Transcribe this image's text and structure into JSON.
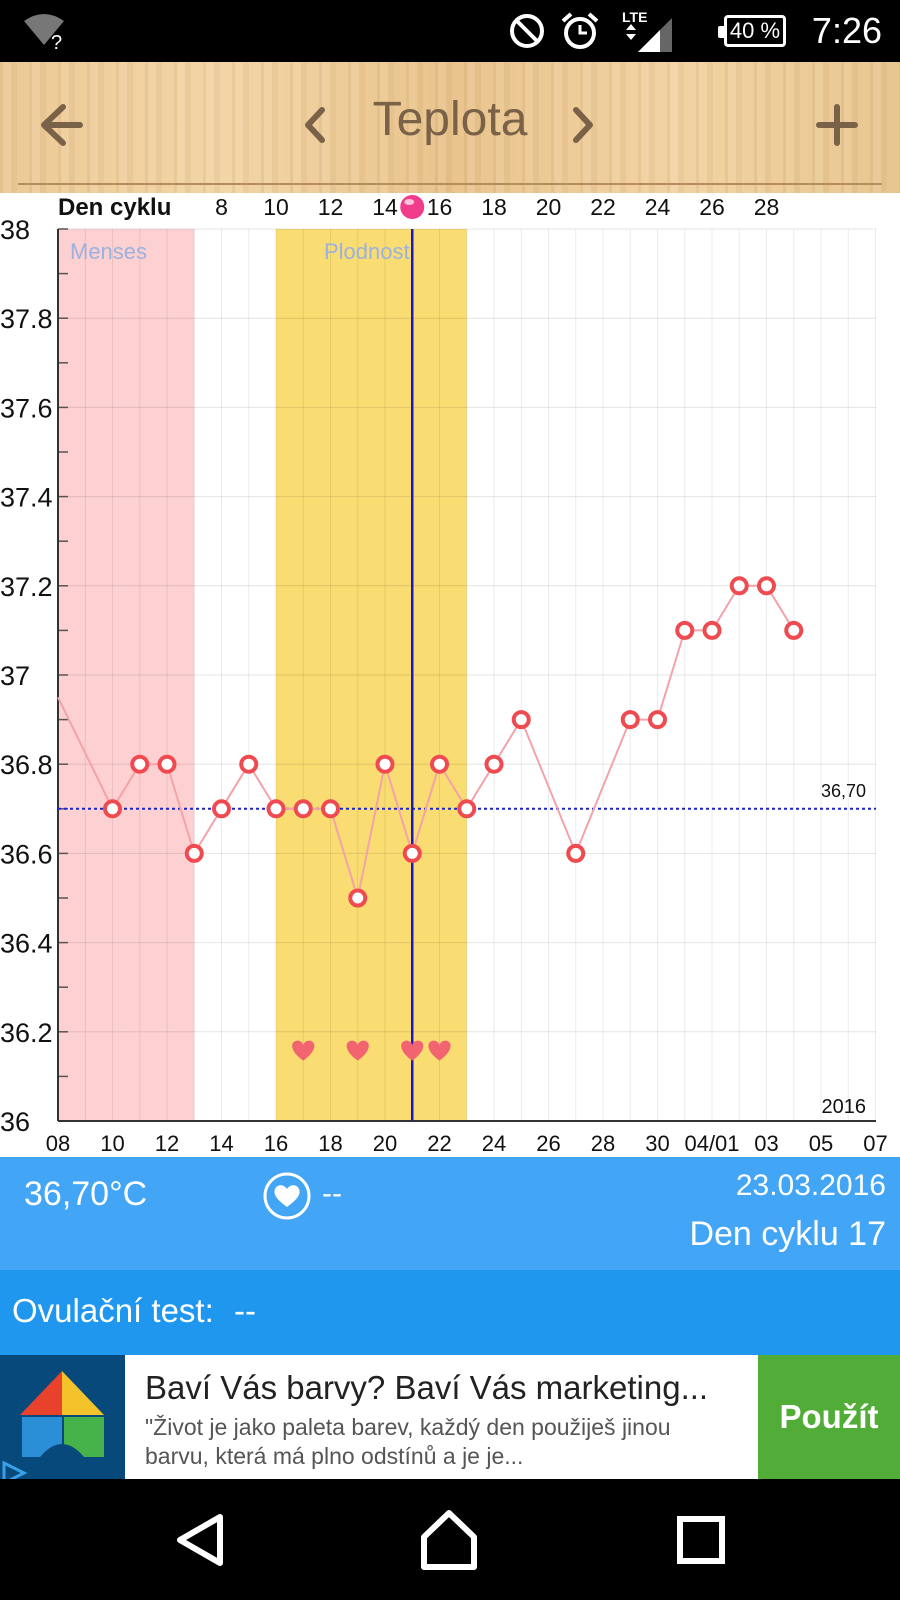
{
  "status_bar": {
    "time": "7:26",
    "battery": "40 %",
    "icons": [
      "wifi-unknown-icon",
      "do-not-disturb-icon",
      "alarm-icon",
      "lte-signal-icon",
      "battery-icon"
    ]
  },
  "app_bar": {
    "title": "Teplota",
    "back_icon": "arrow-left-icon",
    "prev_icon": "chevron-left-icon",
    "next_icon": "chevron-right-icon",
    "add_icon": "plus-icon"
  },
  "chart_data": {
    "type": "line",
    "cycle_day_label": "Den cyklu",
    "cycle_day_ticks": [
      "8",
      "10",
      "12",
      "14",
      "16",
      "18",
      "20",
      "22",
      "24",
      "26",
      "28"
    ],
    "ylim": [
      36,
      38
    ],
    "yticks": [
      "36",
      "36.2",
      "36.4",
      "36.6",
      "36.8",
      "37",
      "37.2",
      "37.4",
      "37.6",
      "37.8",
      "38"
    ],
    "xlim_day_index": [
      0,
      30
    ],
    "xtick_labels": [
      "08",
      "10",
      "12",
      "14",
      "16",
      "18",
      "20",
      "22",
      "24",
      "26",
      "28",
      "30",
      "04/01",
      "03",
      "05",
      "07"
    ],
    "year_label": "2016",
    "series": [
      {
        "color": "#f4a3a8",
        "marker_color": "#ef4a4f",
        "points": [
          {
            "x": 2,
            "y": 36.7
          },
          {
            "x": 3,
            "y": 36.8
          },
          {
            "x": 4,
            "y": 36.8
          },
          {
            "x": 5,
            "y": 36.6
          },
          {
            "x": 6,
            "y": 36.7
          },
          {
            "x": 7,
            "y": 36.8
          },
          {
            "x": 8,
            "y": 36.7
          },
          {
            "x": 9,
            "y": 36.7
          },
          {
            "x": 10,
            "y": 36.7
          },
          {
            "x": 11,
            "y": 36.5
          },
          {
            "x": 12,
            "y": 36.8
          },
          {
            "x": 13,
            "y": 36.6
          },
          {
            "x": 14,
            "y": 36.8
          },
          {
            "x": 15,
            "y": 36.7
          },
          {
            "x": 16,
            "y": 36.8
          },
          {
            "x": 17,
            "y": 36.9
          },
          {
            "x": 19,
            "y": 36.6
          },
          {
            "x": 21,
            "y": 36.9
          },
          {
            "x": 22,
            "y": 36.9
          },
          {
            "x": 23,
            "y": 37.1
          },
          {
            "x": 24,
            "y": 37.1
          },
          {
            "x": 25,
            "y": 37.2
          },
          {
            "x": 26,
            "y": 37.2
          },
          {
            "x": 27,
            "y": 37.1
          }
        ]
      }
    ],
    "bands": [
      {
        "label": "Menses",
        "from": 0,
        "to": 5,
        "color": "#fdd0d1",
        "label_color": "#9bb2e0"
      },
      {
        "label": "Plodnost",
        "from": 8,
        "to": 15,
        "color": "#f9dc72",
        "label_color": "#9bb2e0"
      }
    ],
    "baseline": {
      "value": 36.7,
      "label": "36,70",
      "color": "#1c24c8"
    },
    "selected_day_index": 13,
    "selected_color": "#1a1ac0",
    "marker_dot_color": "#f03c8a",
    "hearts_day_index": [
      9,
      11,
      13,
      14
    ],
    "heart_color": "#f26470"
  },
  "info": {
    "temperature": "36,70°C",
    "sex_value": "--",
    "date": "23.03.2016",
    "cycle_day": "Den cyklu 17"
  },
  "ovulation": {
    "label": "Ovulační test:",
    "value": "--"
  },
  "ad": {
    "title": "Baví Vás barvy? Baví Vás marketing...",
    "body": "\"Život je jako paleta barev, každý den použiješ jinou barvu, která má plno odstínů a je je...",
    "cta": "Použít"
  },
  "nav_bar": {
    "icons": [
      "back-triangle-icon",
      "home-icon",
      "recents-icon"
    ]
  }
}
